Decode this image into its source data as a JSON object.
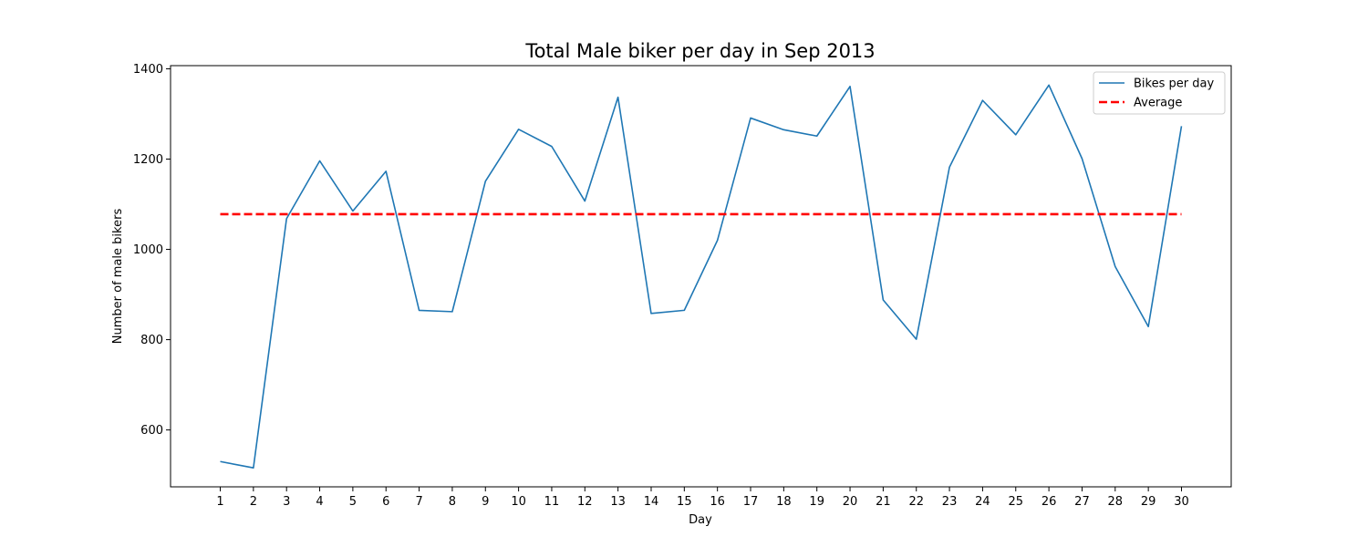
{
  "chart_data": {
    "type": "line",
    "title": "Total Male biker per day in Sep 2013",
    "xlabel": "Day",
    "ylabel": "Number of male bikers",
    "x": [
      1,
      2,
      3,
      4,
      5,
      6,
      7,
      8,
      9,
      10,
      11,
      12,
      13,
      14,
      15,
      16,
      17,
      18,
      19,
      20,
      21,
      22,
      23,
      24,
      25,
      26,
      27,
      28,
      29,
      30
    ],
    "xticks": [
      "1",
      "2",
      "3",
      "4",
      "5",
      "6",
      "7",
      "8",
      "9",
      "10",
      "11",
      "12",
      "13",
      "14",
      "15",
      "16",
      "17",
      "18",
      "19",
      "20",
      "21",
      "22",
      "23",
      "24",
      "25",
      "26",
      "27",
      "28",
      "29",
      "30"
    ],
    "yticks": [
      600,
      800,
      1000,
      1200,
      1400
    ],
    "xlim": [
      -0.5,
      31.5
    ],
    "ylim": [
      474,
      1407
    ],
    "grid": false,
    "legend_position": "top-right",
    "series": [
      {
        "name": "Bikes per day",
        "style": "solid",
        "color": "#1f77b4",
        "values": [
          530,
          516,
          1068,
          1196,
          1085,
          1173,
          865,
          862,
          1151,
          1266,
          1228,
          1107,
          1337,
          858,
          865,
          1020,
          1291,
          1265,
          1251,
          1361,
          888,
          801,
          1182,
          1330,
          1254,
          1364,
          1201,
          962,
          829,
          1273
        ]
      },
      {
        "name": "Average",
        "style": "dashed",
        "color": "#ff0000",
        "values": [
          1078,
          1078,
          1078,
          1078,
          1078,
          1078,
          1078,
          1078,
          1078,
          1078,
          1078,
          1078,
          1078,
          1078,
          1078,
          1078,
          1078,
          1078,
          1078,
          1078,
          1078,
          1078,
          1078,
          1078,
          1078,
          1078,
          1078,
          1078,
          1078,
          1078
        ]
      }
    ]
  }
}
